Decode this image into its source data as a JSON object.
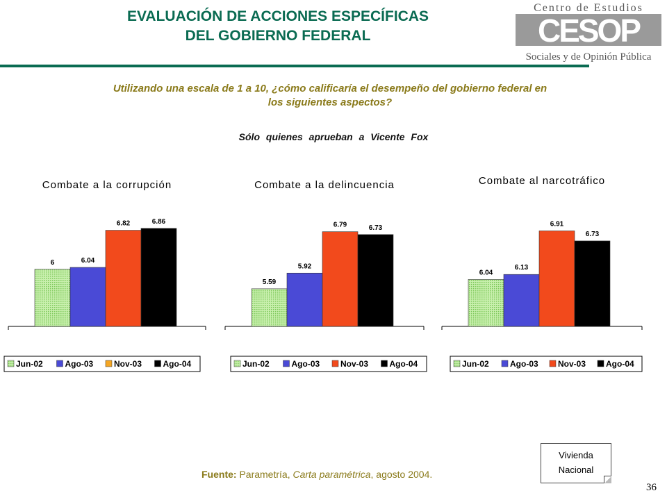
{
  "header": {
    "title_line1": "EVALUACIÓN DE ACCIONES ESPECÍFICAS",
    "title_line2": "DEL GOBIERNO FEDERAL"
  },
  "logo": {
    "top_text": "Centro de Estudios",
    "mark_text": "CESOP",
    "bottom_text": "Sociales y de Opinión Pública"
  },
  "question": {
    "line1": "Utilizando una escala de 1 a 10, ¿cómo calificaría el desempeño del gobierno federal en",
    "line2": "los siguientes aspectos?"
  },
  "subset_note": "Sólo quienes aprueban a Vicente Fox",
  "series_colors": {
    "Jun-02": "#b9e89a",
    "Ago-03": "#4a4ad6",
    "Nov-03": "#f24a1c",
    "Ago-04": "#000000"
  },
  "chart_data": [
    {
      "type": "bar",
      "title": "Combate a la corrupción",
      "categories": [
        "Jun-02",
        "Ago-03",
        "Nov-03",
        "Ago-04"
      ],
      "values": [
        6,
        6.04,
        6.82,
        6.86
      ],
      "value_labels": [
        "6",
        "6.04",
        "6.82",
        "6.86"
      ],
      "legend": [
        "Jun-02",
        "Ago-03",
        "Nov-03",
        "Ago-04"
      ],
      "legend_colors": [
        "#b9e89a",
        "#4a4ad6",
        "#f5a623",
        "#000000"
      ],
      "legend_position": "bottom",
      "ylim": [
        4.8,
        7.5
      ],
      "grid": false
    },
    {
      "type": "bar",
      "title": "Combate a la delincuencia",
      "categories": [
        "Jun-02",
        "Ago-03",
        "Nov-03",
        "Ago-04"
      ],
      "values": [
        5.59,
        5.92,
        6.79,
        6.73
      ],
      "value_labels": [
        "5.59",
        "5.92",
        "6.79",
        "6.73"
      ],
      "legend": [
        "Jun-02",
        "Ago-03",
        "Nov-03",
        "Ago-04"
      ],
      "legend_colors": [
        "#b9e89a",
        "#4a4ad6",
        "#f24a1c",
        "#000000"
      ],
      "legend_position": "bottom",
      "ylim": [
        4.8,
        7.5
      ],
      "grid": false
    },
    {
      "type": "bar",
      "title": "Combate al narcotráfico",
      "categories": [
        "Jun-02",
        "Ago-03",
        "Nov-03",
        "Ago-04"
      ],
      "values": [
        6.04,
        6.13,
        6.91,
        6.73
      ],
      "value_labels": [
        "6.04",
        "6.13",
        "6.91",
        "6.73"
      ],
      "legend": [
        "Jun-02",
        "Ago-03",
        "Nov-03",
        "Ago-04"
      ],
      "legend_colors": [
        "#b9e89a",
        "#4a4ad6",
        "#f24a1c",
        "#000000"
      ],
      "legend_position": "bottom",
      "ylim": [
        5.2,
        7.5
      ],
      "grid": false
    }
  ],
  "source": {
    "label": "Fuente:",
    "text1": " Parametría, ",
    "italic": "Carta paramétrica",
    "text2": ", agosto 2004."
  },
  "note_box": {
    "line1": "Vivienda",
    "line2": "Nacional"
  },
  "page_number": "36"
}
